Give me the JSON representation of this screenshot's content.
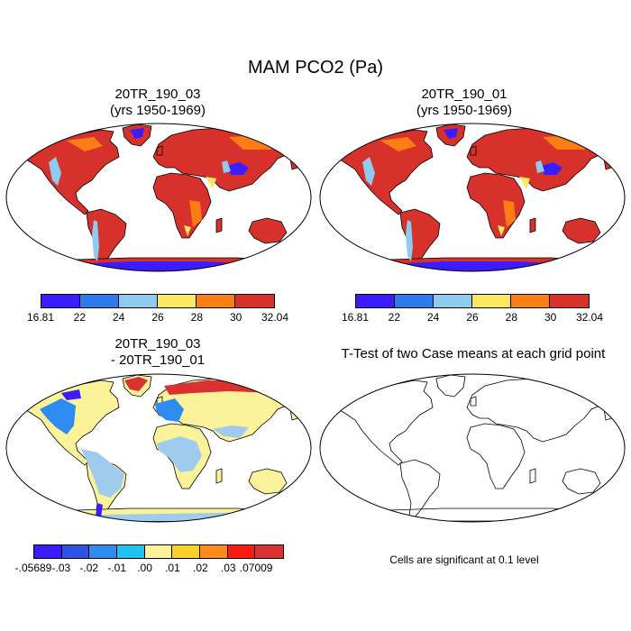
{
  "figure": {
    "title": "MAM PCO2 (Pa)",
    "panels": [
      {
        "title_line1": "20TR_190_03",
        "title_line2": "(yrs 1950-1969)"
      },
      {
        "title_line1": "20TR_190_01",
        "title_line2": "(yrs 1950-1969)"
      },
      {
        "title_line1": "20TR_190_03",
        "title_line2": "- 20TR_190_01"
      },
      {
        "title_line1": "T-Test of two Case means at each grid point",
        "title_line2": ""
      }
    ],
    "significance_note": "Cells are significant at 0.1 level"
  },
  "colorbars": {
    "absolute": {
      "labels": [
        "16.81",
        "22",
        "24",
        "26",
        "28",
        "30",
        "32.04"
      ],
      "colors": [
        "#3a1cff",
        "#2e7bec",
        "#8fcbef",
        "#fbe860",
        "#fb7d14",
        "#d7312c"
      ]
    },
    "difference": {
      "labels": [
        "-.05689",
        "-.03",
        "-.02",
        "-.01",
        ".00",
        ".01",
        ".02",
        ".03",
        ".07009"
      ],
      "colors": [
        "#3c1cff",
        "#2d52e8",
        "#2e8cf0",
        "#22c2ee",
        "#fbf29a",
        "#fbcf28",
        "#fb8c1a",
        "#fb1a12",
        "#d8312f"
      ]
    }
  },
  "map_colors": {
    "absolute": {
      "land": "#d7312c",
      "ocean": "#ffffff",
      "green_zone": "#fb7d14",
      "deserts": "#fbe860",
      "ice": "#3a1cff",
      "andes": "#8fcbef"
    },
    "difference": {
      "land": "#fbf29a",
      "tropics": "#9ecbee",
      "arctic": "#d8312f",
      "cold": "#2e8cf0",
      "deep_cold": "#3c1cff"
    }
  }
}
